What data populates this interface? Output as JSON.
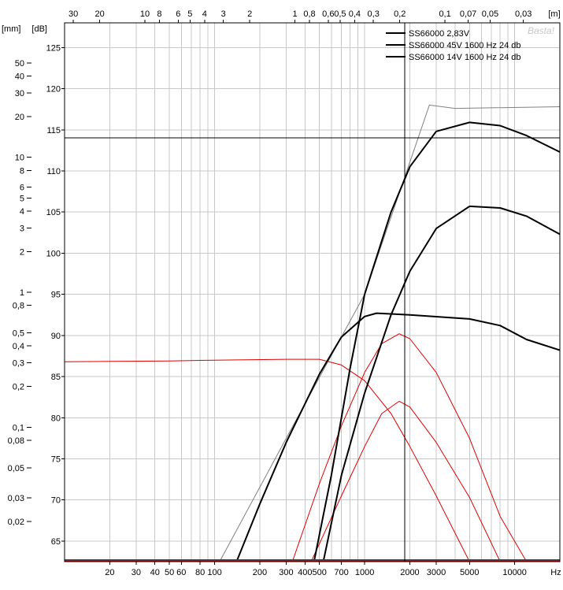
{
  "chart_data": {
    "type": "line",
    "watermark": "Basta!",
    "x_axis": {
      "scale": "log",
      "unit_label": "Hz",
      "range": [
        10,
        20000
      ],
      "tick_labels": [
        {
          "value": 20,
          "label": "20"
        },
        {
          "value": 30,
          "label": "30"
        },
        {
          "value": 40,
          "label": "40"
        },
        {
          "value": 50,
          "label": "50"
        },
        {
          "value": 60,
          "label": "60"
        },
        {
          "value": 80,
          "label": "80"
        },
        {
          "value": 100,
          "label": "100"
        },
        {
          "value": 200,
          "label": "200"
        },
        {
          "value": 300,
          "label": "300"
        },
        {
          "value": 400,
          "label": "400"
        },
        {
          "value": 500,
          "label": "500"
        },
        {
          "value": 700,
          "label": "700"
        },
        {
          "value": 1000,
          "label": "1000"
        },
        {
          "value": 2000,
          "label": "2000"
        },
        {
          "value": 3000,
          "label": "3000"
        },
        {
          "value": 5000,
          "label": "5000"
        },
        {
          "value": 10000,
          "label": "10000"
        }
      ]
    },
    "top_axis": {
      "unit_label": "[m]",
      "note": "wavelength in metres = 343 / frequency",
      "tick_labels": [
        {
          "value": 30,
          "label": "30"
        },
        {
          "value": 20,
          "label": "20"
        },
        {
          "value": 10,
          "label": "10"
        },
        {
          "value": 8,
          "label": "8"
        },
        {
          "value": 6,
          "label": "6"
        },
        {
          "value": 5,
          "label": "5"
        },
        {
          "value": 4,
          "label": "4"
        },
        {
          "value": 3,
          "label": "3"
        },
        {
          "value": 2,
          "label": "2"
        },
        {
          "value": 1,
          "label": "1"
        },
        {
          "value": 0.8,
          "label": "0,8"
        },
        {
          "value": 0.6,
          "label": "0,6"
        },
        {
          "value": 0.5,
          "label": "0,5"
        },
        {
          "value": 0.4,
          "label": "0,4"
        },
        {
          "value": 0.3,
          "label": "0,3"
        },
        {
          "value": 0.2,
          "label": "0,2"
        },
        {
          "value": 0.1,
          "label": "0,1"
        },
        {
          "value": 0.07,
          "label": "0,07"
        },
        {
          "value": 0.05,
          "label": "0,05"
        },
        {
          "value": 0.03,
          "label": "0,03"
        }
      ]
    },
    "y_axis": {
      "unit_label": "[dB]",
      "range": [
        62.5,
        128
      ],
      "tick_labels": [
        {
          "value": 65,
          "label": "65"
        },
        {
          "value": 70,
          "label": "70"
        },
        {
          "value": 75,
          "label": "75"
        },
        {
          "value": 80,
          "label": "80"
        },
        {
          "value": 85,
          "label": "85"
        },
        {
          "value": 90,
          "label": "90"
        },
        {
          "value": 95,
          "label": "95"
        },
        {
          "value": 100,
          "label": "100"
        },
        {
          "value": 105,
          "label": "105"
        },
        {
          "value": 110,
          "label": "110"
        },
        {
          "value": 115,
          "label": "115"
        },
        {
          "value": 120,
          "label": "120"
        },
        {
          "value": 125,
          "label": "125"
        }
      ]
    },
    "excursion_axis": {
      "unit_label": "[mm]",
      "scale": "log",
      "tick_labels": [
        {
          "value": 50,
          "label": "50"
        },
        {
          "value": 40,
          "label": "40"
        },
        {
          "value": 30,
          "label": "30"
        },
        {
          "value": 20,
          "label": "20"
        },
        {
          "value": 10,
          "label": "10"
        },
        {
          "value": 8,
          "label": "8"
        },
        {
          "value": 6,
          "label": "6"
        },
        {
          "value": 5,
          "label": "5"
        },
        {
          "value": 4,
          "label": "4"
        },
        {
          "value": 3,
          "label": "3"
        },
        {
          "value": 2,
          "label": "2"
        },
        {
          "value": 1,
          "label": "1"
        },
        {
          "value": 0.8,
          "label": "0,8"
        },
        {
          "value": 0.5,
          "label": "0,5"
        },
        {
          "value": 0.4,
          "label": "0,4"
        },
        {
          "value": 0.3,
          "label": "0,3"
        },
        {
          "value": 0.2,
          "label": "0,2"
        },
        {
          "value": 0.1,
          "label": "0,1"
        },
        {
          "value": 0.08,
          "label": "0,08"
        },
        {
          "value": 0.05,
          "label": "0,05"
        },
        {
          "value": 0.03,
          "label": "0,03"
        },
        {
          "value": 0.02,
          "label": "0,02"
        }
      ]
    },
    "cursor": {
      "x": 1850,
      "y": 114
    },
    "legend": {
      "placement": "top-right",
      "entries": [
        "SS66000 2,83V",
        "SS66000 45V 1600 Hz 24 db",
        "SS66000 14V 1600 Hz 24 db"
      ]
    },
    "colors": {
      "spl": "#000000",
      "excursion": "#e00000",
      "reference": "#808080"
    },
    "series": [
      {
        "legend_index": 0,
        "kind": "spl",
        "stroke_width": 2,
        "points": [
          [
            140,
            62.5
          ],
          [
            200,
            69.5
          ],
          [
            300,
            77
          ],
          [
            500,
            85.3
          ],
          [
            700,
            89.8
          ],
          [
            1000,
            92.3
          ],
          [
            1200,
            92.7
          ],
          [
            2000,
            92.5
          ],
          [
            5000,
            92
          ],
          [
            8000,
            91.2
          ],
          [
            12000,
            89.5
          ],
          [
            20000,
            88.2
          ]
        ]
      },
      {
        "legend_index": 1,
        "kind": "spl",
        "stroke_width": 2,
        "points": [
          [
            460,
            62.5
          ],
          [
            600,
            73
          ],
          [
            800,
            86
          ],
          [
            1000,
            95
          ],
          [
            1500,
            105
          ],
          [
            2000,
            110.5
          ],
          [
            3000,
            114.8
          ],
          [
            5000,
            115.9
          ],
          [
            8000,
            115.5
          ],
          [
            12000,
            114.3
          ],
          [
            20000,
            112.3
          ]
        ]
      },
      {
        "legend_index": 2,
        "kind": "spl",
        "stroke_width": 2,
        "points": [
          [
            530,
            62.5
          ],
          [
            700,
            73
          ],
          [
            1000,
            83
          ],
          [
            1500,
            92.5
          ],
          [
            2000,
            97.8
          ],
          [
            3000,
            103
          ],
          [
            5000,
            105.7
          ],
          [
            8000,
            105.5
          ],
          [
            12000,
            104.5
          ],
          [
            20000,
            102.3
          ]
        ]
      },
      {
        "kind": "reference",
        "stroke_width": 1,
        "points": [
          [
            108,
            62.5
          ],
          [
            300,
            77.5
          ],
          [
            1000,
            95
          ],
          [
            2700,
            118
          ],
          [
            4000,
            117.6
          ],
          [
            20000,
            117.8
          ]
        ]
      },
      {
        "kind": "excursion",
        "stroke_width": 1,
        "points": [
          [
            10,
            86.8
          ],
          [
            50,
            86.9
          ],
          [
            100,
            87
          ],
          [
            300,
            87.1
          ],
          [
            500,
            87.1
          ],
          [
            700,
            86.4
          ],
          [
            1000,
            84.5
          ],
          [
            1500,
            80.5
          ],
          [
            2000,
            76.5
          ],
          [
            3000,
            70.5
          ],
          [
            4000,
            66
          ],
          [
            5000,
            62.5
          ]
        ]
      },
      {
        "kind": "excursion",
        "stroke_width": 1,
        "points": [
          [
            330,
            62.5
          ],
          [
            500,
            72
          ],
          [
            700,
            79
          ],
          [
            1000,
            85.5
          ],
          [
            1300,
            89
          ],
          [
            1700,
            90.2
          ],
          [
            2000,
            89.6
          ],
          [
            3000,
            85.5
          ],
          [
            5000,
            77.5
          ],
          [
            8000,
            68
          ],
          [
            12000,
            62.5
          ]
        ]
      },
      {
        "kind": "excursion",
        "stroke_width": 1,
        "points": [
          [
            440,
            62.5
          ],
          [
            700,
            70.5
          ],
          [
            1000,
            76.5
          ],
          [
            1300,
            80.5
          ],
          [
            1700,
            82
          ],
          [
            2000,
            81.3
          ],
          [
            3000,
            77
          ],
          [
            5000,
            70.3
          ],
          [
            8000,
            62.5
          ]
        ]
      }
    ]
  }
}
